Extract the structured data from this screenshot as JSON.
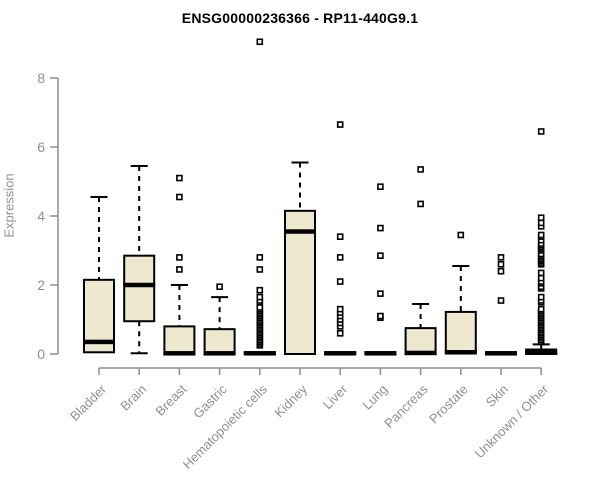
{
  "chart_data": {
    "type": "boxplot",
    "title": "ENSG00000236366 - RP11-440G9.1",
    "xlabel": "",
    "ylabel": "Expression",
    "ylim": [
      0,
      8
    ],
    "yticks": [
      0,
      2,
      4,
      6,
      8
    ],
    "grid": false,
    "legend": "none",
    "categories": [
      "Bladder",
      "Brain",
      "Breast",
      "Gastric",
      "Hematopoietic cells",
      "Kidney",
      "Liver",
      "Lung",
      "Pancreas",
      "Prostate",
      "Skin",
      "Unknown / Other"
    ],
    "series": [
      {
        "name": "Bladder",
        "low": 0.05,
        "q1": 0.05,
        "median": 0.35,
        "q3": 2.15,
        "high": 4.55,
        "outliers": []
      },
      {
        "name": "Brain",
        "low": 0.02,
        "q1": 0.95,
        "median": 2.0,
        "q3": 2.85,
        "high": 5.45,
        "outliers": []
      },
      {
        "name": "Breast",
        "low": 0,
        "q1": 0,
        "median": 0.02,
        "q3": 0.8,
        "high": 2.0,
        "outliers": [
          2.45,
          2.8,
          4.55,
          5.1
        ]
      },
      {
        "name": "Gastric",
        "low": 0,
        "q1": 0,
        "median": 0.02,
        "q3": 0.72,
        "high": 1.65,
        "outliers": [
          1.95
        ]
      },
      {
        "name": "Hematopoietic cells",
        "low": 0,
        "q1": 0,
        "median": 0.02,
        "q3": 0.05,
        "high": 0.08,
        "outliers": [
          0.25,
          0.3,
          0.35,
          0.4,
          0.45,
          0.5,
          0.55,
          0.6,
          0.65,
          0.7,
          0.75,
          0.8,
          0.85,
          0.9,
          0.95,
          1.0,
          1.05,
          1.1,
          1.15,
          1.2,
          1.25,
          1.3,
          1.35,
          1.5,
          1.55,
          1.65,
          1.85,
          2.45,
          2.8,
          9.05
        ]
      },
      {
        "name": "Kidney",
        "low": 0,
        "q1": 0,
        "median": 3.55,
        "q3": 4.15,
        "high": 5.55,
        "outliers": []
      },
      {
        "name": "Liver",
        "low": 0,
        "q1": 0,
        "median": 0.02,
        "q3": 0.05,
        "high": 0.05,
        "outliers": [
          0.6,
          0.8,
          0.9,
          1.0,
          1.1,
          1.2,
          1.3,
          2.1,
          2.8,
          3.4,
          6.65
        ]
      },
      {
        "name": "Lung",
        "low": 0,
        "q1": 0,
        "median": 0.02,
        "q3": 0.05,
        "high": 0.05,
        "outliers": [
          1.05,
          1.1,
          1.75,
          2.85,
          3.65,
          4.85
        ]
      },
      {
        "name": "Pancreas",
        "low": 0,
        "q1": 0,
        "median": 0.03,
        "q3": 0.75,
        "high": 1.45,
        "outliers": [
          4.35,
          5.35
        ]
      },
      {
        "name": "Prostate",
        "low": 0.02,
        "q1": 0.02,
        "median": 0.05,
        "q3": 1.22,
        "high": 2.55,
        "outliers": [
          3.45
        ]
      },
      {
        "name": "Skin",
        "low": 0,
        "q1": 0,
        "median": 0.02,
        "q3": 0.05,
        "high": 0.05,
        "outliers": [
          1.55,
          2.4,
          2.6,
          2.8
        ]
      },
      {
        "name": "Unknown / Other",
        "low": 0,
        "q1": 0,
        "median": 0.04,
        "q3": 0.13,
        "high": 0.28,
        "outliers": [
          0.35,
          0.4,
          0.45,
          0.5,
          0.55,
          0.6,
          0.65,
          0.7,
          0.75,
          0.8,
          0.85,
          0.9,
          0.95,
          1.0,
          1.05,
          1.1,
          1.15,
          1.2,
          1.25,
          1.3,
          1.5,
          1.55,
          1.65,
          1.9,
          1.95,
          2.05,
          2.1,
          2.2,
          2.35,
          2.6,
          2.65,
          2.7,
          2.75,
          2.8,
          2.85,
          2.9,
          3.0,
          3.05,
          3.1,
          3.15,
          3.2,
          3.3,
          3.4,
          3.45,
          3.7,
          3.8,
          3.95,
          6.45
        ]
      }
    ],
    "colors": {
      "box_fill": "#ede8ce",
      "box_border": "#000000",
      "median": "#000000",
      "whisker": "#000000",
      "outlier": "#000000",
      "axis": "#8f8f8f",
      "tick_label": "#8f8f8f",
      "title": "#000000",
      "background": "#ffffff"
    }
  }
}
